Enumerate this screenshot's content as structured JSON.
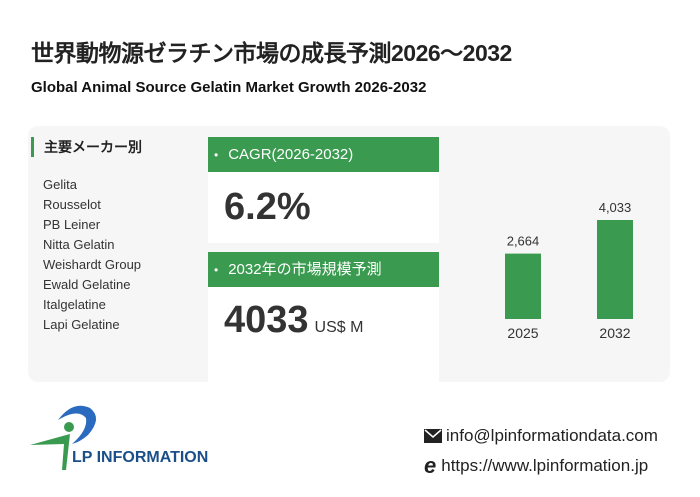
{
  "header": {
    "title": "世界動物源ゼラチン市場の成長予測2026～2032",
    "subtitle": "Global Animal Source Gelatin Market Growth 2026-2032"
  },
  "manufacturers": {
    "heading": "主要メーカー別",
    "items": [
      "Gelita",
      "Rousselot",
      "PB Leiner",
      "Nitta Gelatin",
      "Weishardt Group",
      "Ewald Gelatine",
      "Italgelatine",
      "Lapi Gelatine"
    ]
  },
  "cagr": {
    "label": "CAGR(2026-2032)",
    "value": "6.2%"
  },
  "market_size": {
    "label": "2032年の市場規模予測",
    "value": "4033",
    "unit": "US$ M"
  },
  "chart_data": {
    "type": "bar",
    "categories": [
      "2025",
      "2032"
    ],
    "values": [
      2664,
      4033
    ],
    "value_labels": [
      "2,664",
      "4,033"
    ],
    "color": "#3a9a4f",
    "ylim": [
      0,
      4033
    ]
  },
  "footer": {
    "logo_text": "LP INFORMATION",
    "email": "info@lpinformationdata.com",
    "website": "https://www.lpinformation.jp"
  }
}
